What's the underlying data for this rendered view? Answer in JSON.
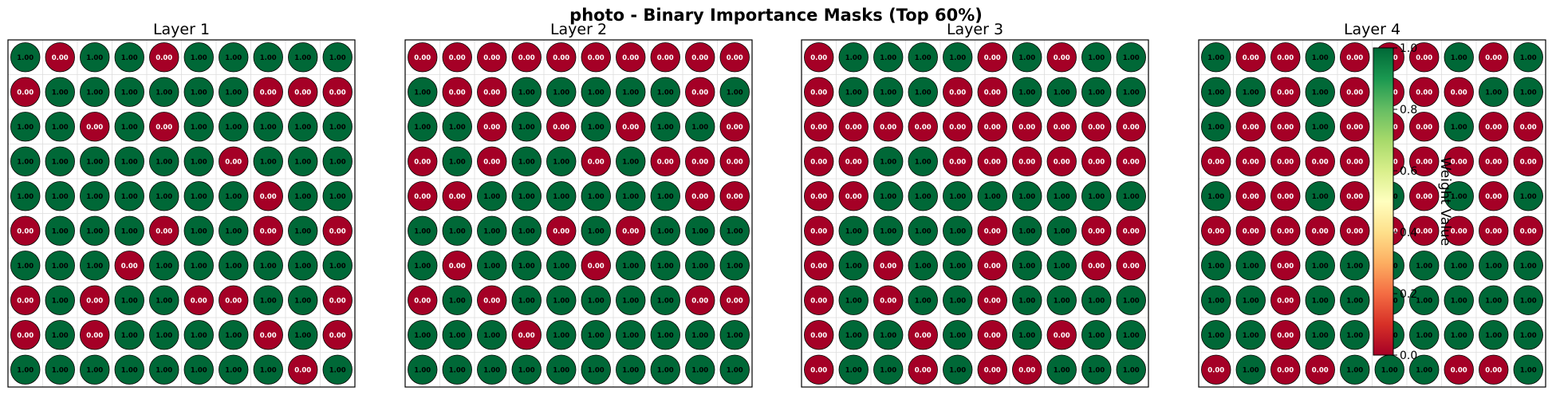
{
  "figure": {
    "title": "photo - Binary Importance Masks (Top 60%)"
  },
  "colorbar": {
    "label": "Weight Value",
    "ticks": [
      "0.0",
      "0.2",
      "0.4",
      "0.6",
      "0.8",
      "1.0"
    ],
    "colormap": "RdYlGn",
    "colors": [
      "#a50026",
      "#d73027",
      "#f46d43",
      "#fdae61",
      "#fee08b",
      "#ffffbf",
      "#d9ef8b",
      "#a6d96a",
      "#66bd63",
      "#1a9850",
      "#006837"
    ]
  },
  "chart_data": [
    {
      "type": "heatmap",
      "title": "Layer 1",
      "value_labels": {
        "0": "0.00",
        "1": "1.00"
      },
      "colors": {
        "0": "#a50026",
        "1": "#006837"
      },
      "rows": [
        [
          1,
          0,
          1,
          1,
          0,
          1,
          1,
          1,
          1,
          1
        ],
        [
          0,
          1,
          1,
          1,
          1,
          1,
          1,
          0,
          0,
          0
        ],
        [
          1,
          1,
          0,
          1,
          0,
          1,
          1,
          1,
          1,
          1
        ],
        [
          1,
          1,
          1,
          1,
          1,
          1,
          0,
          1,
          1,
          1
        ],
        [
          1,
          1,
          1,
          1,
          1,
          1,
          1,
          0,
          1,
          1
        ],
        [
          0,
          1,
          1,
          1,
          0,
          1,
          1,
          0,
          1,
          0
        ],
        [
          1,
          1,
          1,
          0,
          1,
          1,
          1,
          1,
          1,
          1
        ],
        [
          0,
          1,
          0,
          1,
          1,
          0,
          0,
          1,
          1,
          0
        ],
        [
          0,
          1,
          0,
          1,
          1,
          1,
          1,
          0,
          1,
          0
        ],
        [
          1,
          1,
          1,
          1,
          1,
          1,
          1,
          1,
          0,
          1
        ]
      ]
    },
    {
      "type": "heatmap",
      "title": "Layer 2",
      "value_labels": {
        "0": "0.00",
        "1": "1.00"
      },
      "colors": {
        "0": "#a50026",
        "1": "#006837"
      },
      "rows": [
        [
          0,
          0,
          0,
          0,
          0,
          0,
          0,
          0,
          0,
          0
        ],
        [
          1,
          0,
          0,
          1,
          1,
          1,
          1,
          1,
          0,
          1
        ],
        [
          1,
          1,
          0,
          1,
          0,
          1,
          0,
          1,
          1,
          0
        ],
        [
          0,
          1,
          0,
          1,
          1,
          0,
          1,
          0,
          0,
          0
        ],
        [
          0,
          0,
          1,
          1,
          1,
          1,
          1,
          1,
          0,
          0
        ],
        [
          1,
          1,
          1,
          1,
          0,
          1,
          0,
          1,
          1,
          1
        ],
        [
          1,
          0,
          1,
          1,
          1,
          0,
          1,
          1,
          1,
          1
        ],
        [
          0,
          1,
          0,
          1,
          1,
          1,
          1,
          1,
          0,
          0
        ],
        [
          1,
          1,
          1,
          0,
          1,
          1,
          1,
          1,
          1,
          1
        ],
        [
          1,
          1,
          1,
          1,
          1,
          1,
          1,
          1,
          1,
          1
        ]
      ]
    },
    {
      "type": "heatmap",
      "title": "Layer 3",
      "value_labels": {
        "0": "0.00",
        "1": "1.00"
      },
      "colors": {
        "0": "#a50026",
        "1": "#006837"
      },
      "rows": [
        [
          0,
          1,
          1,
          1,
          1,
          0,
          1,
          0,
          1,
          1
        ],
        [
          0,
          1,
          1,
          1,
          0,
          0,
          1,
          1,
          1,
          1
        ],
        [
          0,
          0,
          0,
          0,
          0,
          0,
          0,
          0,
          0,
          0
        ],
        [
          0,
          0,
          1,
          1,
          0,
          0,
          0,
          0,
          0,
          0
        ],
        [
          0,
          0,
          1,
          1,
          1,
          1,
          1,
          1,
          1,
          1
        ],
        [
          0,
          1,
          1,
          1,
          1,
          0,
          1,
          1,
          0,
          0
        ],
        [
          0,
          1,
          0,
          1,
          1,
          0,
          1,
          1,
          0,
          0
        ],
        [
          0,
          1,
          0,
          1,
          1,
          0,
          1,
          1,
          1,
          1
        ],
        [
          0,
          1,
          1,
          0,
          1,
          0,
          1,
          0,
          1,
          1
        ],
        [
          0,
          1,
          1,
          0,
          1,
          0,
          0,
          1,
          1,
          1
        ]
      ]
    },
    {
      "type": "heatmap",
      "title": "Layer 4",
      "value_labels": {
        "0": "0.00",
        "1": "1.00"
      },
      "colors": {
        "0": "#a50026",
        "1": "#006837"
      },
      "rows": [
        [
          1,
          0,
          0,
          1,
          0,
          0,
          0,
          1,
          0,
          1
        ],
        [
          1,
          1,
          0,
          1,
          0,
          0,
          0,
          0,
          1,
          1
        ],
        [
          1,
          0,
          0,
          1,
          0,
          0,
          0,
          1,
          0,
          0
        ],
        [
          0,
          0,
          0,
          0,
          0,
          0,
          0,
          0,
          0,
          0
        ],
        [
          1,
          0,
          0,
          1,
          0,
          1,
          0,
          1,
          0,
          1
        ],
        [
          0,
          0,
          0,
          0,
          0,
          0,
          0,
          0,
          0,
          0
        ],
        [
          1,
          1,
          0,
          1,
          1,
          1,
          1,
          1,
          1,
          1
        ],
        [
          1,
          1,
          0,
          1,
          1,
          1,
          1,
          1,
          1,
          1
        ],
        [
          1,
          1,
          0,
          1,
          1,
          1,
          1,
          1,
          1,
          1
        ],
        [
          0,
          1,
          0,
          0,
          1,
          1,
          1,
          0,
          0,
          1
        ]
      ]
    }
  ]
}
